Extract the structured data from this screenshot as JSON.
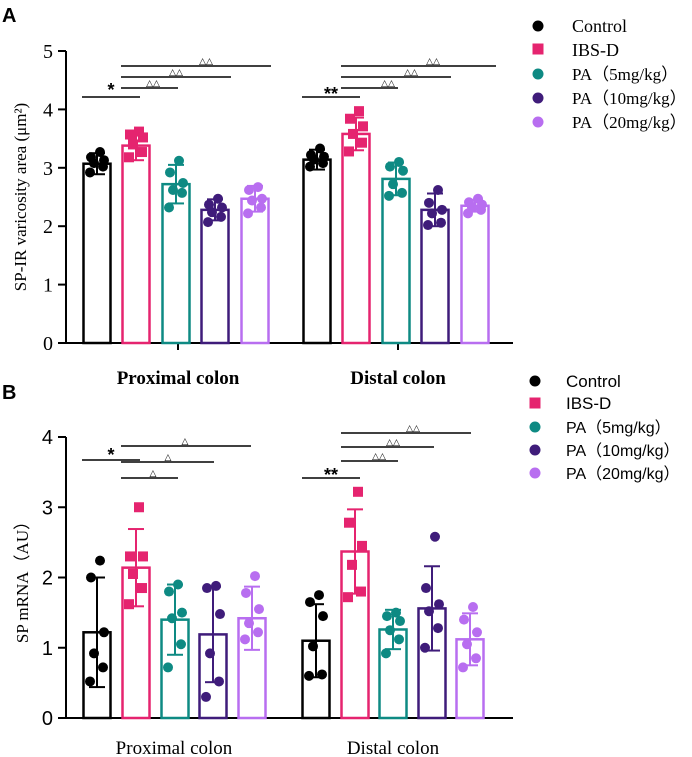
{
  "colors": {
    "control": "#000000",
    "ibsd": "#e5246f",
    "pa5": "#0e8a83",
    "pa10": "#3f1c7a",
    "pa20": "#b86ef0"
  },
  "panels": {
    "A": {
      "label": "A",
      "legend": [
        "Control",
        "IBS-D",
        "PA（5mg/kg）",
        "PA（10mg/kg）",
        "PA（20mg/kg）"
      ],
      "sig": {
        "star_prox": "*",
        "star_dist": "**",
        "tri_prox": "△△",
        "tri_dist": "△△"
      }
    },
    "B": {
      "label": "B",
      "legend": [
        "Control",
        "IBS-D",
        "PA（5mg/kg）",
        "PA（10mg/kg）",
        "PA（20mg/kg）"
      ],
      "sig": {
        "star_prox": "*",
        "star_dist": "**",
        "tri_prox": "△",
        "tri_dist": "△△"
      }
    }
  },
  "chart_data": [
    {
      "type": "bar",
      "panel": "A",
      "ylabel": "SP-IR varicosity area (μm²)",
      "ylim": [
        0,
        5
      ],
      "yticks": [
        "0",
        "1",
        "2",
        "3",
        "4",
        "5"
      ],
      "categories": [
        "Proximal colon",
        "Distal colon"
      ],
      "series": [
        {
          "name": "Control",
          "marker": "circle",
          "values": [
            3.07,
            3.14
          ],
          "errors": [
            0.18,
            0.17
          ],
          "points": [
            [
              2.92,
              3.02,
              3.08,
              3.13,
              3.18,
              3.27
            ],
            [
              3.02,
              3.08,
              3.14,
              3.19,
              3.22,
              3.33
            ]
          ]
        },
        {
          "name": "IBS-D",
          "marker": "square",
          "values": [
            3.38,
            3.58
          ],
          "errors": [
            0.25,
            0.28
          ],
          "points": [
            [
              3.18,
              3.27,
              3.4,
              3.52,
              3.57,
              3.62
            ],
            [
              3.28,
              3.43,
              3.58,
              3.71,
              3.84,
              3.97
            ]
          ]
        },
        {
          "name": "PA（5mg/kg）",
          "marker": "circle",
          "values": [
            2.72,
            2.81
          ],
          "errors": [
            0.33,
            0.28
          ],
          "points": [
            [
              2.32,
              2.57,
              2.62,
              2.74,
              2.92,
              3.12
            ],
            [
              2.52,
              2.57,
              2.72,
              2.95,
              3.02,
              3.1
            ]
          ]
        },
        {
          "name": "PA（10mg/kg）",
          "marker": "circle",
          "values": [
            2.28,
            2.28
          ],
          "errors": [
            0.18,
            0.28
          ],
          "points": [
            [
              2.07,
              2.16,
              2.24,
              2.32,
              2.37,
              2.47
            ],
            [
              2.02,
              2.06,
              2.22,
              2.28,
              2.4,
              2.62
            ]
          ]
        },
        {
          "name": "PA（20mg/kg）",
          "marker": "circle",
          "values": [
            2.47,
            2.35
          ],
          "errors": [
            0.22,
            0.1
          ],
          "points": [
            [
              2.22,
              2.32,
              2.44,
              2.47,
              2.62,
              2.67
            ],
            [
              2.22,
              2.28,
              2.32,
              2.37,
              2.41,
              2.47
            ]
          ]
        }
      ]
    },
    {
      "type": "bar",
      "panel": "B",
      "ylabel": "SP mRNA（AU）",
      "ylim": [
        0,
        4
      ],
      "yticks": [
        "0",
        "1",
        "2",
        "3",
        "4"
      ],
      "categories": [
        "Proximal colon",
        "Distal colon"
      ],
      "series": [
        {
          "name": "Control",
          "marker": "circle",
          "values": [
            1.22,
            1.1
          ],
          "errors": [
            0.78,
            0.52
          ],
          "points": [
            [
              0.52,
              0.72,
              0.92,
              1.22,
              2.0,
              2.24
            ],
            [
              0.6,
              0.62,
              1.02,
              1.45,
              1.65,
              1.75
            ]
          ]
        },
        {
          "name": "IBS-D",
          "marker": "square",
          "values": [
            2.14,
            2.37
          ],
          "errors": [
            0.55,
            0.6
          ],
          "points": [
            [
              1.62,
              1.85,
              2.05,
              2.3,
              2.3,
              3.0
            ],
            [
              1.72,
              1.8,
              2.18,
              2.45,
              2.78,
              3.22
            ]
          ]
        },
        {
          "name": "PA（5mg/kg）",
          "marker": "circle",
          "values": [
            1.4,
            1.26
          ],
          "errors": [
            0.5,
            0.28
          ],
          "points": [
            [
              0.72,
              1.05,
              1.42,
              1.5,
              1.8,
              1.9
            ],
            [
              0.92,
              1.12,
              1.25,
              1.38,
              1.45,
              1.5
            ]
          ]
        },
        {
          "name": "PA（10mg/kg）",
          "marker": "circle",
          "values": [
            1.19,
            1.56
          ],
          "errors": [
            0.68,
            0.6
          ],
          "points": [
            [
              0.3,
              0.52,
              0.92,
              1.48,
              1.85,
              1.88
            ],
            [
              1.0,
              1.28,
              1.52,
              1.62,
              1.85,
              2.58
            ]
          ]
        },
        {
          "name": "PA（20mg/kg）",
          "marker": "circle",
          "values": [
            1.42,
            1.12
          ],
          "errors": [
            0.45,
            0.37
          ],
          "points": [
            [
              1.12,
              1.22,
              1.35,
              1.55,
              1.78,
              2.02
            ],
            [
              0.72,
              0.85,
              1.05,
              1.22,
              1.4,
              1.58
            ]
          ]
        }
      ]
    }
  ]
}
